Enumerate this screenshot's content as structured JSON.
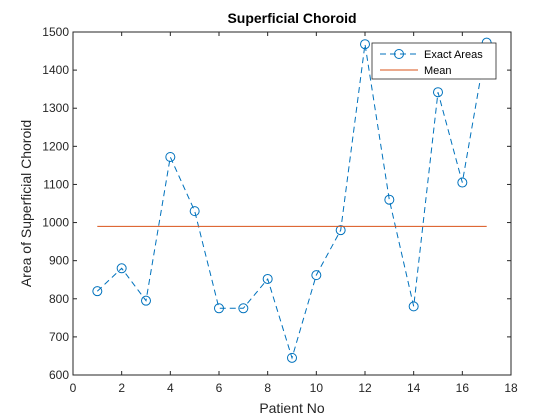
{
  "chart_data": {
    "type": "line",
    "title": "Superficial Choroid",
    "xlabel": "Patient No",
    "ylabel": "Area of Superficial Choroid",
    "xlim": [
      0,
      18
    ],
    "ylim": [
      600,
      1500
    ],
    "xticks": [
      0,
      2,
      4,
      6,
      8,
      10,
      12,
      14,
      16,
      18
    ],
    "yticks": [
      600,
      700,
      800,
      900,
      1000,
      1100,
      1200,
      1300,
      1400,
      1500
    ],
    "grid": false,
    "legend_position": "top-right",
    "series": [
      {
        "name": "Exact Areas",
        "color": "#0072BD",
        "line_style": "dashed",
        "marker": "circle",
        "x": [
          1,
          2,
          3,
          4,
          5,
          6,
          7,
          8,
          9,
          10,
          11,
          12,
          13,
          14,
          15,
          16,
          17
        ],
        "y": [
          820,
          880,
          795,
          1172,
          1030,
          775,
          775,
          852,
          645,
          862,
          980,
          1468,
          1060,
          780,
          1342,
          1105,
          1472
        ]
      },
      {
        "name": "Mean",
        "color": "#D95319",
        "line_style": "solid",
        "marker": "none",
        "x": [
          1,
          17
        ],
        "y": [
          990,
          990
        ]
      }
    ]
  }
}
